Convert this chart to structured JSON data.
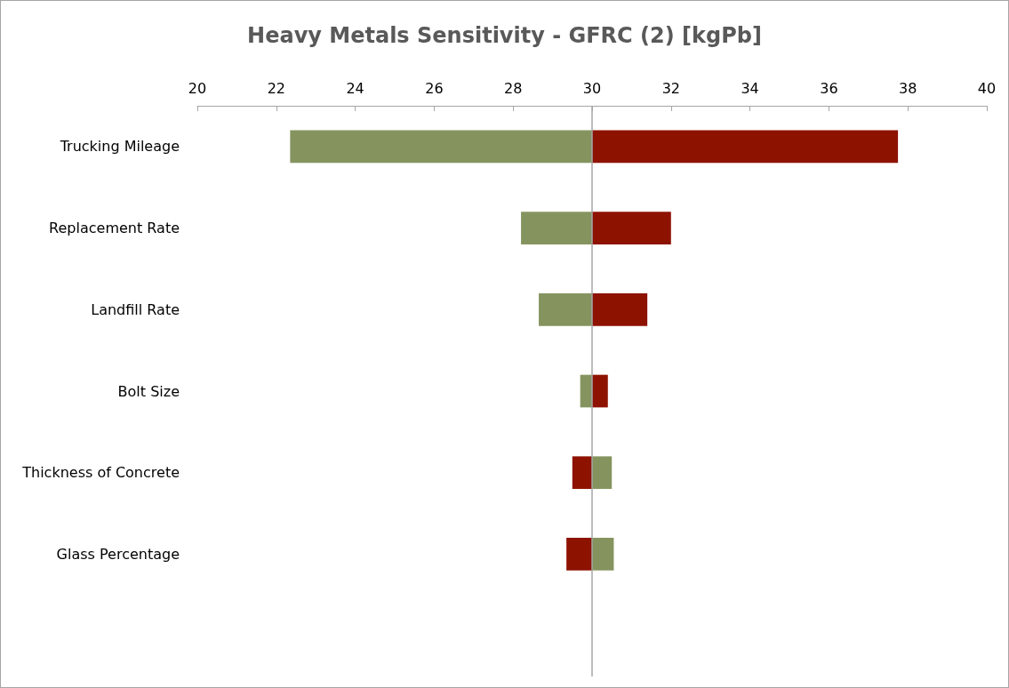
{
  "chart_data": {
    "type": "bar",
    "orientation": "horizontal",
    "title": "Heavy Metals Sensitivity - GFRC (2) [kgPb]",
    "categories": [
      "Trucking Mileage",
      "Replacement Rate",
      "Landfill Rate",
      "Bolt Size",
      "Thickness of Concrete",
      "Glass Percentage",
      null
    ],
    "series": [
      {
        "color": "#85945f",
        "base": [
          22.35,
          28.2,
          28.65,
          29.7,
          30,
          30,
          null
        ],
        "values": [
          7.65,
          1.8,
          1.35,
          0.3,
          0.5,
          0.55,
          null
        ]
      },
      {
        "color": "#8e1200",
        "base": [
          30,
          30,
          30,
          30,
          29.5,
          29.35,
          null
        ],
        "values": [
          7.75,
          2.0,
          1.4,
          0.4,
          0.5,
          0.65,
          null
        ]
      }
    ],
    "xlim": [
      20,
      40
    ],
    "xticks": [
      20,
      22,
      24,
      26,
      28,
      30,
      32,
      34,
      36,
      38,
      40
    ],
    "ref_lines": [
      {
        "axis": "x",
        "value": 30,
        "color": "#a6a6a6"
      }
    ],
    "grid": false
  }
}
